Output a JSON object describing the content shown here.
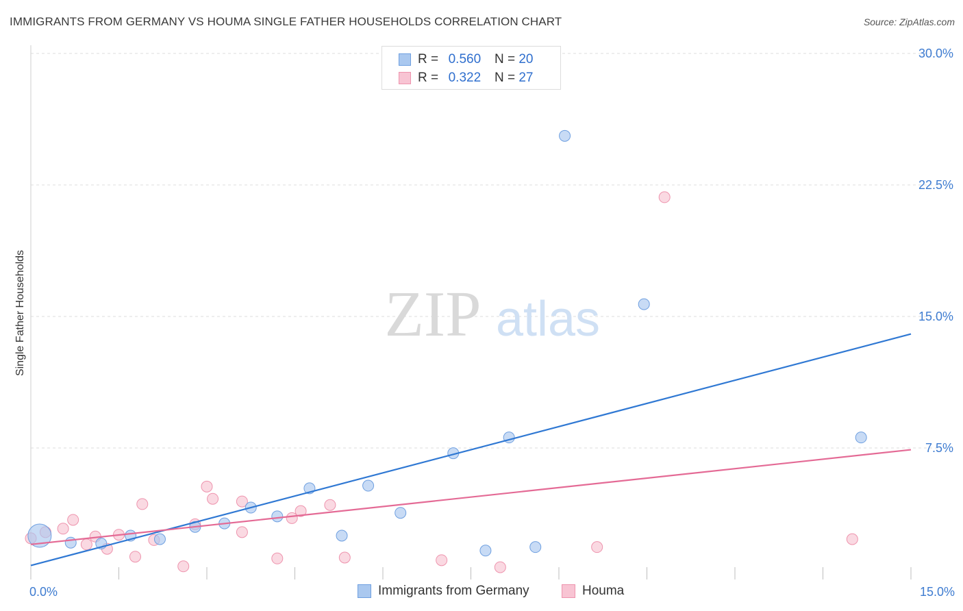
{
  "header": {
    "title": "IMMIGRANTS FROM GERMANY VS HOUMA SINGLE FATHER HOUSEHOLDS CORRELATION CHART",
    "source": "Source: ZipAtlas.com"
  },
  "watermark": {
    "zip": "ZIP",
    "atlas": "atlas"
  },
  "legend_stats": [
    {
      "r_label": "R =",
      "r_value": "0.560",
      "n_label": "N =",
      "n_value": "20",
      "color": "#aac8ef",
      "border": "#6e9fe0"
    },
    {
      "r_label": "R =",
      "r_value": "0.322",
      "n_label": "N =",
      "n_value": "27",
      "color": "#f8c4d3",
      "border": "#ee93ad"
    }
  ],
  "chart_data": {
    "type": "scatter",
    "title": "IMMIGRANTS FROM GERMANY VS HOUMA SINGLE FATHER HOUSEHOLDS CORRELATION CHART",
    "xlabel": "",
    "ylabel": "Single Father Households",
    "xlim": [
      0,
      15
    ],
    "ylim": [
      0,
      30
    ],
    "x_tick_labels": [
      "0.0%",
      "15.0%"
    ],
    "y_ticks": [
      7.5,
      15.0,
      22.5,
      30.0
    ],
    "y_tick_labels": [
      "7.5%",
      "15.0%",
      "22.5%",
      "30.0%"
    ],
    "grid": true,
    "legend_position": "bottom",
    "series": [
      {
        "name": "Immigrants from Germany",
        "color": "#aac8ef",
        "stroke": "#6e9fe0",
        "line_color": "#2f78d3",
        "trend": {
          "x": [
            0,
            15
          ],
          "y": [
            0.8,
            14.0
          ]
        },
        "points": [
          {
            "x": 0.15,
            "y": 2.5,
            "big": true
          },
          {
            "x": 0.68,
            "y": 2.1
          },
          {
            "x": 1.2,
            "y": 2.05
          },
          {
            "x": 1.7,
            "y": 2.5
          },
          {
            "x": 2.2,
            "y": 2.3
          },
          {
            "x": 2.8,
            "y": 3.0
          },
          {
            "x": 3.3,
            "y": 3.2
          },
          {
            "x": 3.75,
            "y": 4.1
          },
          {
            "x": 4.2,
            "y": 3.6
          },
          {
            "x": 4.75,
            "y": 5.2
          },
          {
            "x": 5.3,
            "y": 2.5
          },
          {
            "x": 5.75,
            "y": 5.35
          },
          {
            "x": 6.3,
            "y": 3.8
          },
          {
            "x": 7.2,
            "y": 7.2
          },
          {
            "x": 7.75,
            "y": 1.65
          },
          {
            "x": 8.15,
            "y": 8.1
          },
          {
            "x": 8.6,
            "y": 1.85
          },
          {
            "x": 9.1,
            "y": 25.3
          },
          {
            "x": 10.45,
            "y": 15.7
          },
          {
            "x": 14.15,
            "y": 8.1
          }
        ]
      },
      {
        "name": "Houma",
        "color": "#f8c4d3",
        "stroke": "#ee93ad",
        "line_color": "#e46a95",
        "trend": {
          "x": [
            0,
            15
          ],
          "y": [
            2.0,
            7.4
          ]
        },
        "points": [
          {
            "x": 0.0,
            "y": 2.35
          },
          {
            "x": 0.25,
            "y": 2.7
          },
          {
            "x": 0.55,
            "y": 2.9
          },
          {
            "x": 0.72,
            "y": 3.4
          },
          {
            "x": 0.95,
            "y": 2.0
          },
          {
            "x": 1.1,
            "y": 2.45
          },
          {
            "x": 1.3,
            "y": 1.75
          },
          {
            "x": 1.5,
            "y": 2.55
          },
          {
            "x": 1.78,
            "y": 1.3
          },
          {
            "x": 1.9,
            "y": 4.3
          },
          {
            "x": 2.1,
            "y": 2.25
          },
          {
            "x": 2.6,
            "y": 0.75
          },
          {
            "x": 2.8,
            "y": 3.15
          },
          {
            "x": 3.0,
            "y": 5.3
          },
          {
            "x": 3.1,
            "y": 4.6
          },
          {
            "x": 3.6,
            "y": 2.7
          },
          {
            "x": 3.6,
            "y": 4.45
          },
          {
            "x": 4.2,
            "y": 1.2
          },
          {
            "x": 4.45,
            "y": 3.5
          },
          {
            "x": 4.6,
            "y": 3.9
          },
          {
            "x": 5.1,
            "y": 4.25
          },
          {
            "x": 5.35,
            "y": 1.25
          },
          {
            "x": 7.0,
            "y": 1.1
          },
          {
            "x": 8.0,
            "y": 0.7
          },
          {
            "x": 9.65,
            "y": 1.85
          },
          {
            "x": 10.8,
            "y": 21.8
          },
          {
            "x": 14.0,
            "y": 2.3
          }
        ]
      }
    ]
  }
}
